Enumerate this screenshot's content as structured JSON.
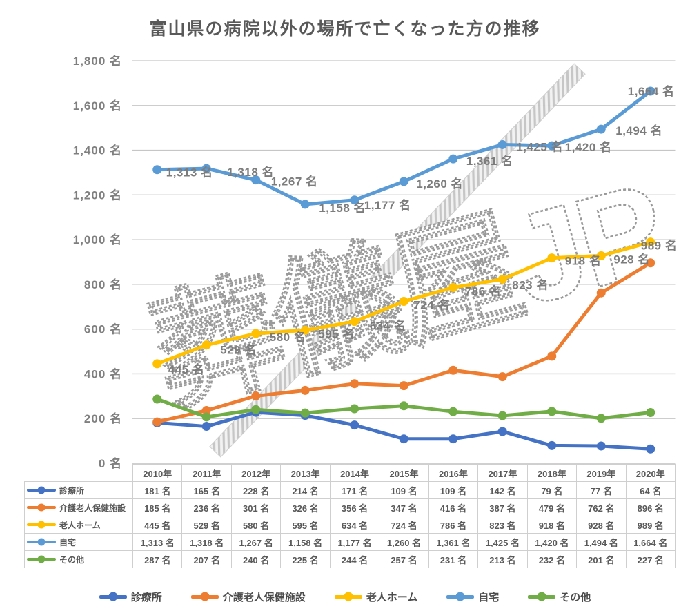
{
  "title": "富山県の病院以外の場所で亡くなった方の推移",
  "watermark": {
    "text": "葬儀屋JP"
  },
  "colors": {
    "title_text": "#595959",
    "axis_text": "#7f7f7f",
    "grid": "#c6c6c6",
    "table_border": "#cfcfcf",
    "watermark_stroke": "#9a9a9a",
    "watermark_fill": "#ffffff",
    "band_stripe": "#c4c4c4"
  },
  "y_axis": {
    "unit": "名",
    "labels": [
      "0 名",
      "200 名",
      "400 名",
      "600 名",
      "800 名",
      "1,000 名",
      "1,200 名",
      "1,400 名",
      "1,600 名",
      "1,800 名"
    ]
  },
  "chart_data": {
    "type": "line",
    "title": "富山県の病院以外の場所で亡くなった方の推移",
    "categories": [
      "2010年",
      "2011年",
      "2012年",
      "2013年",
      "2014年",
      "2015年",
      "2016年",
      "2017年",
      "2018年",
      "2019年",
      "2020年"
    ],
    "ylim": [
      0,
      1800
    ],
    "ytick_step": 200,
    "grid": true,
    "legend_position": "bottom",
    "series": [
      {
        "name": "診療所",
        "color": "#4472C4",
        "labeled": false,
        "values": [
          181,
          165,
          228,
          214,
          171,
          109,
          109,
          142,
          79,
          77,
          64
        ],
        "display": [
          "181 名",
          "165 名",
          "228 名",
          "214 名",
          "171 名",
          "109 名",
          "109 名",
          "142 名",
          "79 名",
          "77 名",
          "64 名"
        ]
      },
      {
        "name": "介護老人保健施設",
        "color": "#ED7D31",
        "labeled": false,
        "values": [
          185,
          236,
          301,
          326,
          356,
          347,
          416,
          387,
          479,
          762,
          896
        ],
        "display": [
          "185 名",
          "236 名",
          "301 名",
          "326 名",
          "356 名",
          "347 名",
          "416 名",
          "387 名",
          "479 名",
          "762 名",
          "896 名"
        ]
      },
      {
        "name": "老人ホーム",
        "color": "#FFC000",
        "labeled": true,
        "values": [
          445,
          529,
          580,
          595,
          634,
          724,
          786,
          823,
          918,
          928,
          989
        ],
        "display": [
          "445 名",
          "529 名",
          "580 名",
          "595 名",
          "634 名",
          "724 名",
          "786 名",
          "823 名",
          "918 名",
          "928 名",
          "989 名"
        ],
        "label_offsets": [
          [
            16,
            9
          ],
          [
            20,
            8
          ],
          [
            20,
            6
          ],
          [
            19,
            6
          ],
          [
            22,
            7
          ],
          [
            14,
            6
          ],
          [
            17,
            6
          ],
          [
            14,
            9
          ],
          [
            19,
            5
          ],
          [
            18,
            6
          ],
          [
            -14,
            6
          ]
        ]
      },
      {
        "name": "自宅",
        "color": "#5B9BD5",
        "labeled": true,
        "values": [
          1313,
          1318,
          1267,
          1158,
          1177,
          1260,
          1361,
          1425,
          1420,
          1494,
          1664
        ],
        "display": [
          "1,313 名",
          "1,318 名",
          "1,267 名",
          "1,158 名",
          "1,177 名",
          "1,260 名",
          "1,361 名",
          "1,425 名",
          "1,420 名",
          "1,494 名",
          "1,664 名"
        ],
        "label_offsets": [
          [
            13,
            5
          ],
          [
            30,
            6
          ],
          [
            22,
            3
          ],
          [
            20,
            6
          ],
          [
            14,
            8
          ],
          [
            18,
            4
          ],
          [
            19,
            4
          ],
          [
            20,
            4
          ],
          [
            19,
            3
          ],
          [
            21,
            3
          ],
          [
            -33,
            1
          ]
        ]
      },
      {
        "name": "その他",
        "color": "#70AD47",
        "labeled": false,
        "values": [
          287,
          207,
          240,
          225,
          244,
          257,
          231,
          213,
          232,
          201,
          227
        ],
        "display": [
          "287 名",
          "207 名",
          "240 名",
          "225 名",
          "244 名",
          "257 名",
          "231 名",
          "213 名",
          "232 名",
          "201 名",
          "227 名"
        ]
      }
    ]
  }
}
